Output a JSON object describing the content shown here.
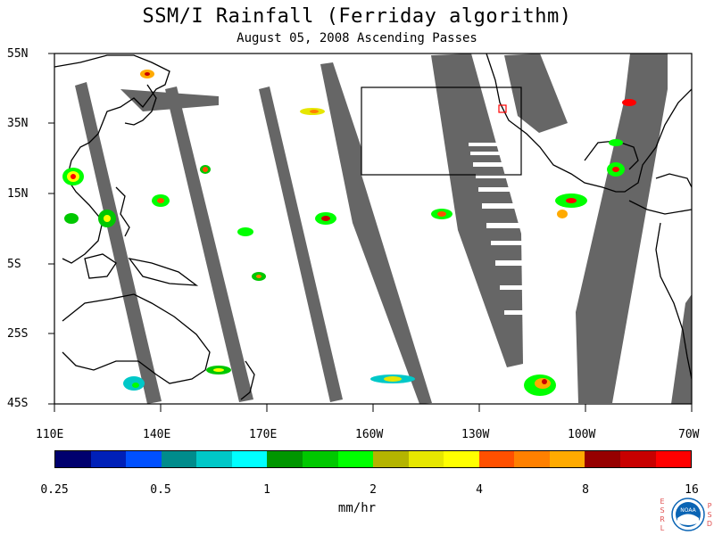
{
  "header": {
    "title": "SSM/I Rainfall (Ferriday algorithm)",
    "subtitle": "August 05, 2008  Ascending Passes"
  },
  "map": {
    "lat_labels": [
      "55N",
      "35N",
      "15N",
      "5S",
      "25S",
      "45S"
    ],
    "lon_labels": [
      "110E",
      "140E",
      "170E",
      "160W",
      "130W",
      "100W",
      "70W"
    ],
    "swath_color": "#666666",
    "land_outline_color": "#000000",
    "box_color": "#000000",
    "marker_color": "#ff0000"
  },
  "colorbar": {
    "tick_labels": [
      "0.25",
      "0.5",
      "1",
      "2",
      "4",
      "8",
      "16"
    ],
    "unit_label": "mm/hr",
    "colors": [
      "#00006e",
      "#0020b8",
      "#0050ff",
      "#008c8c",
      "#00c8c8",
      "#00ffff",
      "#009600",
      "#00c800",
      "#00ff00",
      "#b4b400",
      "#e6e600",
      "#ffff00",
      "#ff5000",
      "#ff8000",
      "#ffaa00",
      "#960000",
      "#c80000",
      "#ff0000"
    ]
  },
  "branding": {
    "left_letters": "ESRL",
    "right_letters": "PSD",
    "logo_text": "NOAA",
    "logo_color": "#0a64b4"
  }
}
